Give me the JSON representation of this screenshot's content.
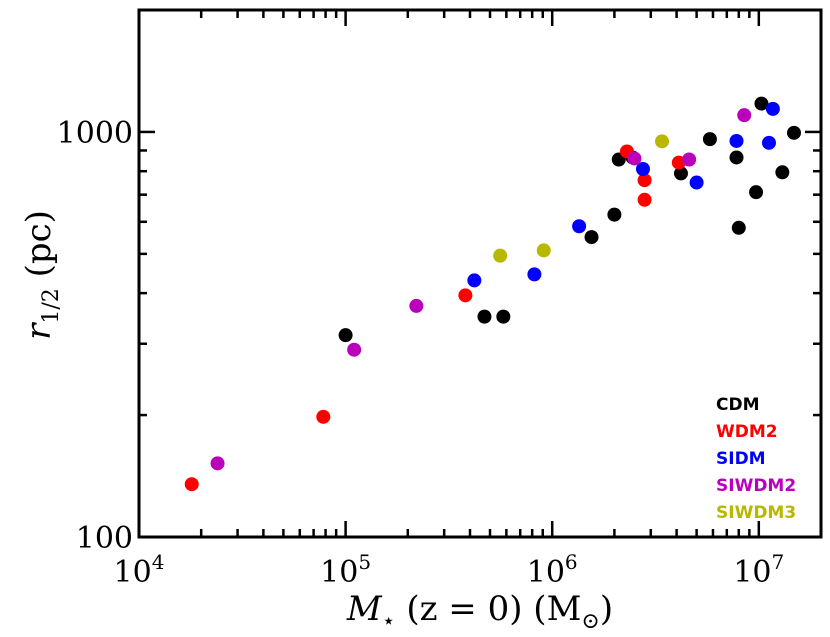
{
  "chart_data": {
    "type": "scatter",
    "x_scale": "log",
    "y_scale": "log",
    "xlim": [
      10000,
      20000000
    ],
    "ylim": [
      100,
      2000
    ],
    "xlabel_parts": [
      "M",
      "⋆",
      " (z = 0) (M",
      "⊙",
      ")"
    ],
    "ylabel_parts": [
      "r",
      "1/2",
      " (pc)"
    ],
    "x_ticks": [
      {
        "value": 10000,
        "base": "10",
        "exp": "4"
      },
      {
        "value": 100000,
        "base": "10",
        "exp": "5"
      },
      {
        "value": 1000000,
        "base": "10",
        "exp": "6"
      },
      {
        "value": 10000000,
        "base": "10",
        "exp": "7"
      }
    ],
    "y_ticks": [
      {
        "value": 100,
        "label": "100"
      },
      {
        "value": 1000,
        "label": "1000"
      }
    ],
    "legend_position": "bottom-right",
    "series": [
      {
        "name": "CDM",
        "color": "#000000",
        "points": [
          [
            100000,
            315
          ],
          [
            470000,
            350
          ],
          [
            580000,
            350
          ],
          [
            1550000,
            550
          ],
          [
            2000000,
            625
          ],
          [
            2100000,
            855
          ],
          [
            2450000,
            865
          ],
          [
            4200000,
            790
          ],
          [
            5800000,
            960
          ],
          [
            7800000,
            865
          ],
          [
            8000000,
            580
          ],
          [
            9700000,
            710
          ],
          [
            10300000,
            1175
          ],
          [
            13000000,
            795
          ],
          [
            14800000,
            995
          ]
        ]
      },
      {
        "name": "WDM2",
        "color": "#ff0000",
        "points": [
          [
            18000,
            135
          ],
          [
            78000,
            198
          ],
          [
            380000,
            395
          ],
          [
            2300000,
            895
          ],
          [
            2800000,
            760
          ],
          [
            2800000,
            680
          ],
          [
            4100000,
            840
          ]
        ]
      },
      {
        "name": "SIDM",
        "color": "#0000ff",
        "points": [
          [
            420000,
            430
          ],
          [
            820000,
            445
          ],
          [
            1350000,
            585
          ],
          [
            2750000,
            810
          ],
          [
            5000000,
            750
          ],
          [
            7800000,
            950
          ],
          [
            11200000,
            940
          ],
          [
            11700000,
            1140
          ]
        ]
      },
      {
        "name": "SIWDM2",
        "color": "#bb00bb",
        "points": [
          [
            24000,
            152
          ],
          [
            110000,
            290
          ],
          [
            220000,
            372
          ],
          [
            2500000,
            860
          ],
          [
            4600000,
            855
          ],
          [
            8500000,
            1100
          ]
        ]
      },
      {
        "name": "SIWDM3",
        "color": "#b8b800",
        "points": [
          [
            560000,
            495
          ],
          [
            910000,
            510
          ],
          [
            3400000,
            948
          ]
        ]
      }
    ]
  }
}
